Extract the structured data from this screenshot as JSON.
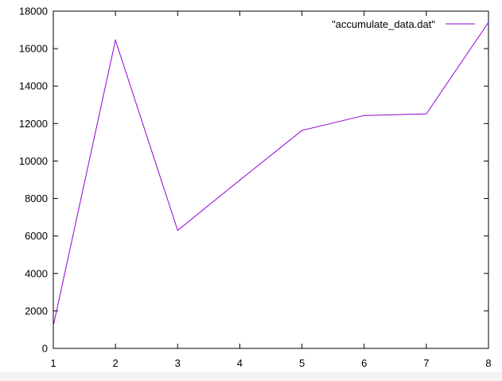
{
  "chart_data": {
    "type": "line",
    "title": "",
    "xlabel": "",
    "ylabel": "",
    "x": [
      1,
      2,
      3,
      4,
      5,
      6,
      7,
      8
    ],
    "series": [
      {
        "name": "\"accumulate_data.dat\"",
        "color": "#9400d3",
        "values": [
          1200,
          16450,
          6300,
          8980,
          11630,
          12430,
          12520,
          17400
        ]
      }
    ],
    "xlim": [
      1,
      8
    ],
    "ylim": [
      0,
      18000
    ],
    "xticks": [
      "1",
      "2",
      "3",
      "4",
      "5",
      "6",
      "7",
      "8"
    ],
    "yticks": [
      "0",
      "2000",
      "4000",
      "6000",
      "8000",
      "10000",
      "12000",
      "14000",
      "16000",
      "18000"
    ],
    "grid": false,
    "legend": "top-right"
  }
}
